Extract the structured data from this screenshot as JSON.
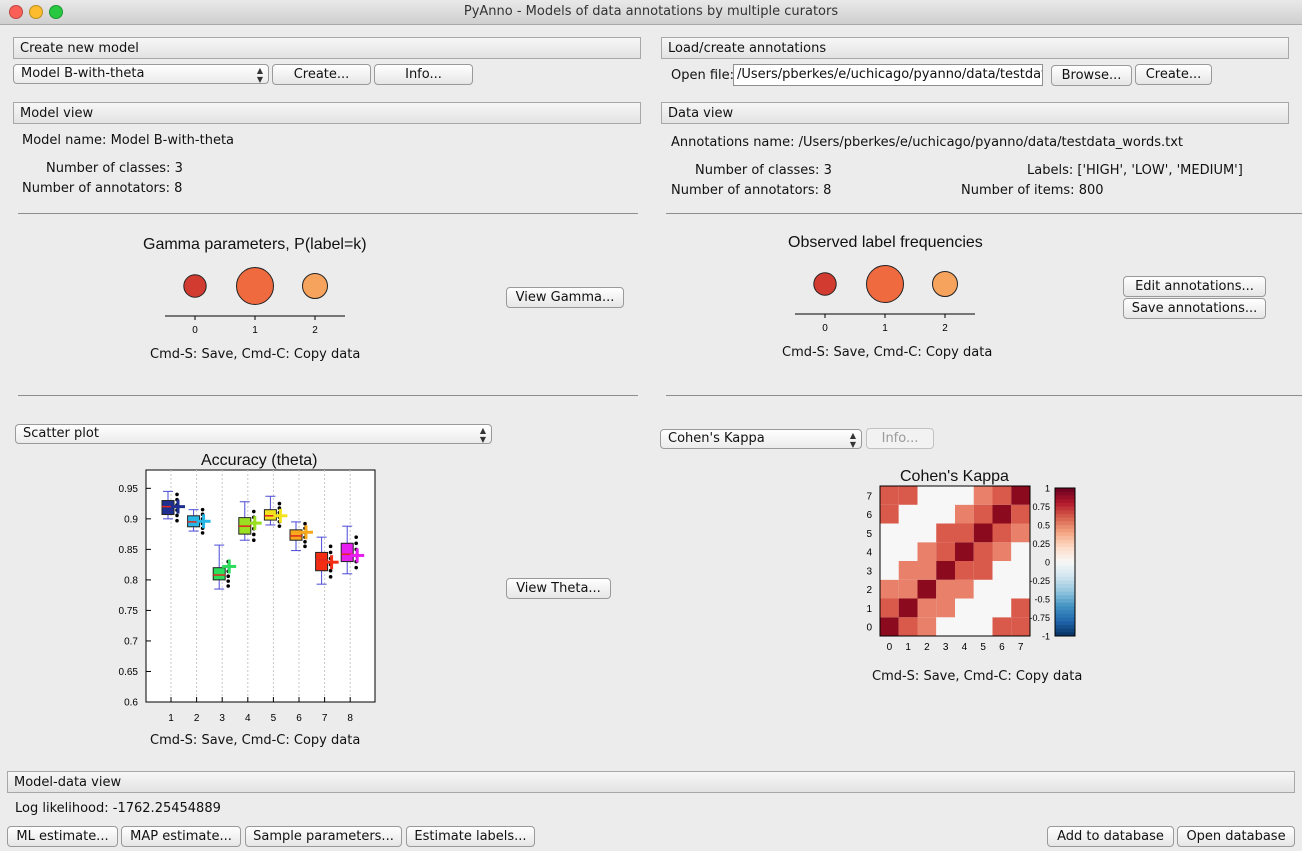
{
  "window": {
    "title": "PyAnno - Models of data annotations by multiple curators"
  },
  "create_model": {
    "header": "Create new model",
    "model_select": "Model B-with-theta",
    "create_label": "Create...",
    "info_label": "Info..."
  },
  "model_view": {
    "header": "Model view",
    "model_name_label": "Model name:",
    "model_name": "Model B-with-theta",
    "num_classes_label": "Number of classes:",
    "num_classes": "3",
    "num_annotators_label": "Number of annotators:",
    "num_annotators": "8",
    "gamma_title": "Gamma parameters, P(label=k)",
    "gamma_hint": "Cmd-S: Save, Cmd-C: Copy data",
    "view_gamma_label": "View Gamma...",
    "plot_select": "Scatter plot",
    "theta_title": "Accuracy (theta)",
    "theta_hint": "Cmd-S: Save, Cmd-C: Copy data",
    "view_theta_label": "View Theta..."
  },
  "load_annotations": {
    "header": "Load/create annotations",
    "open_file_label": "Open file:",
    "file_path": "/Users/pberkes/e/uchicago/pyanno/data/testdata",
    "browse_label": "Browse...",
    "create_label": "Create..."
  },
  "data_view": {
    "header": "Data view",
    "annotations_name_label": "Annotations name:",
    "annotations_name": "/Users/pberkes/e/uchicago/pyanno/data/testdata_words.txt",
    "num_classes_label": "Number of classes:",
    "num_classes": "3",
    "labels_label": "Labels:",
    "labels": "['HIGH', 'LOW', 'MEDIUM']",
    "num_annotators_label": "Number of annotators:",
    "num_annotators": "8",
    "num_items_label": "Number of items:",
    "num_items": "800",
    "freq_title": "Observed label frequencies",
    "freq_hint": "Cmd-S: Save, Cmd-C: Copy data",
    "edit_annotations_label": "Edit annotations...",
    "save_annotations_label": "Save annotations...",
    "stat_select": "Cohen's Kappa",
    "stat_info_label": "Info...",
    "kappa_title": "Cohen's Kappa",
    "kappa_hint": "Cmd-S: Save, Cmd-C: Copy data"
  },
  "model_data_view": {
    "header": "Model-data view",
    "log_likelihood_label": "Log likelihood:",
    "log_likelihood": "-1762.25454889",
    "ml_estimate_label": "ML estimate...",
    "map_estimate_label": "MAP estimate...",
    "sample_parameters_label": "Sample parameters...",
    "estimate_labels_label": "Estimate labels...",
    "add_to_database_label": "Add to database",
    "open_database_label": "Open database"
  },
  "colors": {
    "class0": "#d13b30",
    "class1": "#ef6a3f",
    "class2": "#f6a35e",
    "annotator_colors": [
      "#1f2f8f",
      "#27b7e6",
      "#2ddc5b",
      "#9adf22",
      "#f2e31e",
      "#f7a81c",
      "#f22d14",
      "#e81ef0"
    ],
    "kappa_high": "#67001f",
    "kappa_mid": "#f7f7f7",
    "kappa_low": "#053061"
  },
  "chart_data": [
    {
      "type": "scatter",
      "title": "Gamma parameters, P(label=k)",
      "x": [
        0,
        1,
        2
      ],
      "values": [
        0.2,
        0.55,
        0.25
      ],
      "xticks": [
        "0",
        "1",
        "2"
      ]
    },
    {
      "type": "box",
      "title": "Accuracy (theta)",
      "categories": [
        "1",
        "2",
        "3",
        "4",
        "5",
        "6",
        "7",
        "8"
      ],
      "medians": [
        0.92,
        0.895,
        0.808,
        0.888,
        0.905,
        0.872,
        0.833,
        0.842
      ],
      "q1": [
        0.907,
        0.887,
        0.8,
        0.875,
        0.898,
        0.865,
        0.815,
        0.83
      ],
      "q3": [
        0.93,
        0.905,
        0.82,
        0.902,
        0.915,
        0.882,
        0.845,
        0.86
      ],
      "whisker_low": [
        0.9,
        0.88,
        0.785,
        0.865,
        0.89,
        0.848,
        0.793,
        0.81
      ],
      "whisker_high": [
        0.945,
        0.915,
        0.857,
        0.928,
        0.937,
        0.895,
        0.87,
        0.888
      ],
      "estimates": [
        0.92,
        0.896,
        0.822,
        0.893,
        0.905,
        0.878,
        0.829,
        0.84
      ],
      "ylim": [
        0.6,
        0.98
      ],
      "yticks": [
        0.6,
        0.65,
        0.7,
        0.75,
        0.8,
        0.85,
        0.9,
        0.95
      ]
    },
    {
      "type": "scatter",
      "title": "Observed label frequencies",
      "x": [
        0,
        1,
        2
      ],
      "values": [
        0.2,
        0.55,
        0.25
      ],
      "xticks": [
        "0",
        "1",
        "2"
      ]
    },
    {
      "type": "heatmap",
      "title": "Cohen's Kappa",
      "x": [
        0,
        1,
        2,
        3,
        4,
        5,
        6,
        7
      ],
      "y": [
        0,
        1,
        2,
        3,
        4,
        5,
        6,
        7
      ],
      "matrix": [
        [
          1,
          0.6,
          0.5,
          0,
          0,
          0,
          0.6,
          0.6
        ],
        [
          0.6,
          1,
          0.5,
          0.5,
          0,
          0,
          0,
          0.6
        ],
        [
          0.5,
          0.5,
          1,
          0.5,
          0.5,
          0,
          0,
          0
        ],
        [
          0,
          0.5,
          0.5,
          1,
          0.6,
          0.6,
          0,
          0
        ],
        [
          0,
          0,
          0.5,
          0.6,
          1,
          0.6,
          0.5,
          0
        ],
        [
          0,
          0,
          0,
          0.6,
          0.6,
          1,
          0.6,
          0.5
        ],
        [
          0.6,
          0,
          0,
          0,
          0.5,
          0.6,
          1,
          0.6
        ],
        [
          0.6,
          0.6,
          0,
          0,
          0,
          0.5,
          0.6,
          1
        ]
      ],
      "zlim": [
        -1,
        1
      ],
      "colorbar_ticks": [
        "1",
        "0.75",
        "0.5",
        "0.25",
        "0",
        "-0.25",
        "-0.5",
        "-0.75",
        "-1"
      ]
    }
  ]
}
